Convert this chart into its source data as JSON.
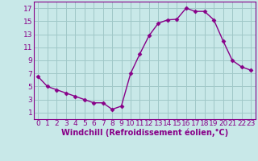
{
  "x": [
    0,
    1,
    2,
    3,
    4,
    5,
    6,
    7,
    8,
    9,
    10,
    11,
    12,
    13,
    14,
    15,
    16,
    17,
    18,
    19,
    20,
    21,
    22,
    23
  ],
  "y": [
    6.5,
    5.0,
    4.5,
    4.0,
    3.5,
    3.0,
    2.5,
    2.5,
    1.5,
    2.0,
    7.0,
    10.0,
    12.8,
    14.7,
    15.2,
    15.3,
    17.0,
    16.5,
    16.5,
    15.2,
    12.0,
    9.0,
    8.0,
    7.5
  ],
  "line_color": "#880088",
  "marker": "D",
  "marker_size": 2.5,
  "bg_color": "#c8e8e8",
  "grid_color": "#a0c8c8",
  "axis_color": "#880088",
  "xlabel": "Windchill (Refroidissement éolien,°C)",
  "xlim": [
    -0.5,
    23.5
  ],
  "ylim": [
    0,
    18
  ],
  "yticks": [
    1,
    3,
    5,
    7,
    9,
    11,
    13,
    15,
    17
  ],
  "xticks": [
    0,
    1,
    2,
    3,
    4,
    5,
    6,
    7,
    8,
    9,
    10,
    11,
    12,
    13,
    14,
    15,
    16,
    17,
    18,
    19,
    20,
    21,
    22,
    23
  ],
  "tick_fontsize": 6.5,
  "xlabel_fontsize": 7.0
}
